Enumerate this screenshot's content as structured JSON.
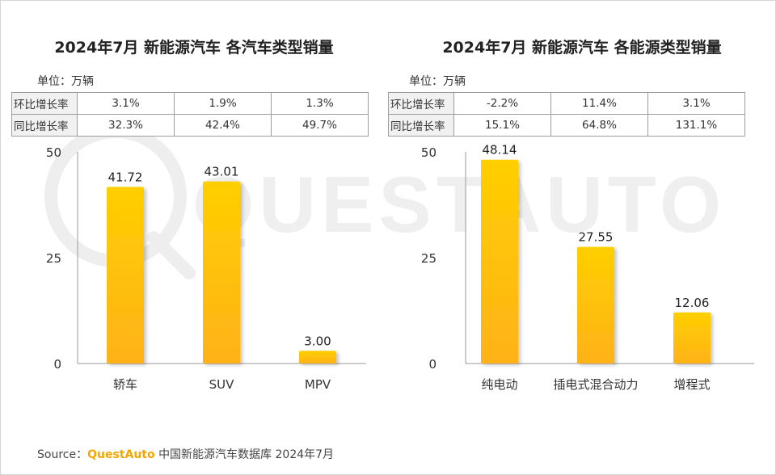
{
  "charts": [
    {
      "title": "2024年7月 新能源汽车 各汽车类型销量",
      "unit": "单位：万辆",
      "rates": [
        {
          "label": "环比增长率",
          "values": [
            "3.1%",
            "1.9%",
            "1.3%"
          ]
        },
        {
          "label": "同比增长率",
          "values": [
            "32.3%",
            "42.4%",
            "49.7%"
          ]
        }
      ]
    },
    {
      "title": "2024年7月 新能源汽车 各能源类型销量",
      "unit": "单位：万辆",
      "rates": [
        {
          "label": "环比增长率",
          "values": [
            "-2.2%",
            "11.4%",
            "3.1%"
          ]
        },
        {
          "label": "同比增长率",
          "values": [
            "15.1%",
            "64.8%",
            "131.1%"
          ]
        }
      ]
    }
  ],
  "chart_data": [
    {
      "type": "bar",
      "title": "2024年7月 新能源汽车 各汽车类型销量",
      "categories": [
        "轿车",
        "SUV",
        "MPV"
      ],
      "values": [
        41.72,
        43.01,
        3.0
      ],
      "value_labels": [
        "41.72",
        "43.01",
        "3.00"
      ],
      "yticks": [
        "0",
        "25",
        "50"
      ],
      "ylim": [
        0,
        50
      ],
      "ylabel": "单位：万辆",
      "grid": false,
      "legend": "none"
    },
    {
      "type": "bar",
      "title": "2024年7月 新能源汽车 各能源类型销量",
      "categories": [
        "纯电动",
        "插电式混合动力",
        "增程式"
      ],
      "values": [
        48.14,
        27.55,
        12.06
      ],
      "value_labels": [
        "48.14",
        "27.55",
        "12.06"
      ],
      "yticks": [
        "0",
        "25",
        "50"
      ],
      "ylim": [
        0,
        50
      ],
      "ylabel": "单位：万辆",
      "grid": false,
      "legend": "none"
    }
  ],
  "colors": {
    "bar_top": "#ffcf00",
    "bar_bottom": "#ffb218",
    "axis": "#999999",
    "brand": "#f5a700",
    "watermark": "#eeeeee"
  },
  "watermark_text": "QUESTAUTO",
  "source": {
    "label": "Source：",
    "brand": "QuestAuto",
    "text": "中国新能源汽车数据库 2024年7月"
  }
}
